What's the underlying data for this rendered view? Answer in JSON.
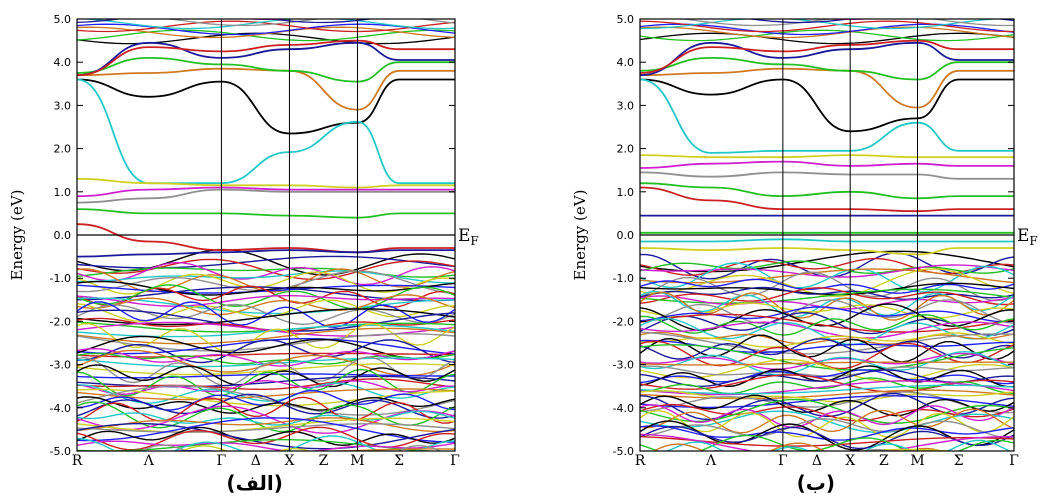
{
  "chart_data": [
    {
      "type": "line",
      "caption": "(الف)",
      "ylabel": "Energy (eV)",
      "ylim": [
        -5.0,
        5.0
      ],
      "yticks": [
        "5.0",
        "4.0",
        "3.0",
        "2.0",
        "1.0",
        "0.0",
        "-1.0",
        "-2.0",
        "-3.0",
        "-4.0",
        "-5.0"
      ],
      "k_points": [
        "R",
        "Λ",
        "Γ",
        "Δ",
        "X",
        "Z",
        "M",
        "Σ",
        "Γ"
      ],
      "fermi_label": "E",
      "fermi_sub": "F",
      "x": [
        0,
        1,
        2,
        3,
        4,
        5,
        6
      ],
      "series": [
        {
          "color": "#000000",
          "values": [
            3.6,
            3.2,
            3.55,
            2.35,
            2.6,
            3.6,
            3.6
          ]
        },
        {
          "color": "#22c8c8",
          "values": [
            3.6,
            1.2,
            1.2,
            1.92,
            2.62,
            1.2,
            1.2
          ]
        },
        {
          "color": "#d07a20",
          "values": [
            3.7,
            3.75,
            3.85,
            3.8,
            2.9,
            3.8,
            3.8
          ]
        },
        {
          "color": "#22c022",
          "values": [
            3.75,
            4.1,
            3.95,
            3.8,
            3.55,
            4.0,
            4.0
          ]
        },
        {
          "color": "#1a1a9a",
          "values": [
            3.7,
            4.45,
            4.1,
            4.3,
            4.45,
            4.05,
            4.05
          ]
        },
        {
          "color": "#cc2020",
          "values": [
            3.7,
            4.35,
            4.25,
            4.4,
            4.5,
            4.3,
            4.3
          ]
        },
        {
          "color": "#d0d020",
          "values": [
            1.3,
            1.2,
            1.15,
            1.15,
            1.1,
            1.15,
            1.15
          ]
        },
        {
          "color": "#d020d0",
          "values": [
            0.9,
            1.05,
            1.1,
            1.05,
            1.05,
            1.05,
            1.05
          ]
        },
        {
          "color": "#909090",
          "values": [
            0.75,
            0.85,
            1.05,
            1.0,
            1.0,
            1.0,
            1.0
          ]
        },
        {
          "color": "#22c022",
          "values": [
            0.6,
            0.5,
            0.5,
            0.45,
            0.4,
            0.5,
            0.5
          ]
        },
        {
          "color": "#cc2020",
          "values": [
            0.25,
            -0.15,
            -0.35,
            -0.3,
            -0.4,
            -0.3,
            -0.3
          ]
        },
        {
          "color": "#1a1a9a",
          "values": [
            -0.5,
            -0.45,
            -0.4,
            -0.35,
            -0.4,
            -0.35,
            -0.35
          ]
        }
      ]
    },
    {
      "type": "line",
      "caption": "(ب)",
      "ylabel": "Energy (eV)",
      "ylim": [
        -5.0,
        5.0
      ],
      "yticks": [
        "5.0",
        "4.0",
        "3.0",
        "2.0",
        "1.0",
        "0.0",
        "-1.0",
        "-2.0",
        "-3.0",
        "-4.0",
        "-5.0"
      ],
      "k_points": [
        "R",
        "Λ",
        "Γ",
        "Δ",
        "X",
        "Z",
        "M",
        "Σ",
        "Γ"
      ],
      "fermi_label": "E",
      "fermi_sub": "F",
      "x": [
        0,
        1,
        2,
        3,
        4,
        5,
        6
      ],
      "series": [
        {
          "color": "#000000",
          "values": [
            3.6,
            3.25,
            3.6,
            2.4,
            2.7,
            3.6,
            3.6
          ]
        },
        {
          "color": "#22c8c8",
          "values": [
            3.6,
            1.9,
            1.95,
            1.95,
            2.6,
            1.95,
            1.95
          ]
        },
        {
          "color": "#d07a20",
          "values": [
            3.7,
            3.75,
            3.85,
            3.8,
            2.95,
            3.8,
            3.8
          ]
        },
        {
          "color": "#22c022",
          "values": [
            3.8,
            4.1,
            3.95,
            3.8,
            3.6,
            4.0,
            4.0
          ]
        },
        {
          "color": "#1a1a9a",
          "values": [
            3.7,
            4.45,
            4.1,
            4.3,
            4.45,
            4.05,
            4.05
          ]
        },
        {
          "color": "#cc2020",
          "values": [
            3.75,
            4.35,
            4.25,
            4.4,
            4.5,
            4.3,
            4.3
          ]
        },
        {
          "color": "#d0d020",
          "values": [
            1.85,
            1.8,
            1.8,
            1.85,
            1.8,
            1.8,
            1.8
          ]
        },
        {
          "color": "#d020d0",
          "values": [
            1.55,
            1.65,
            1.7,
            1.6,
            1.65,
            1.6,
            1.6
          ]
        },
        {
          "color": "#909090",
          "values": [
            1.45,
            1.35,
            1.45,
            1.4,
            1.4,
            1.3,
            1.3
          ]
        },
        {
          "color": "#22c022",
          "values": [
            1.2,
            1.1,
            0.9,
            1.0,
            0.85,
            0.9,
            0.9
          ]
        },
        {
          "color": "#cc2020",
          "values": [
            1.1,
            0.8,
            0.6,
            0.6,
            0.55,
            0.6,
            0.6
          ]
        },
        {
          "color": "#1a1a9a",
          "values": [
            0.45,
            0.45,
            0.45,
            0.45,
            0.45,
            0.45,
            0.45
          ]
        },
        {
          "color": "#22c022",
          "values": [
            0.05,
            0.05,
            0.05,
            0.05,
            0.05,
            0.05,
            0.05
          ]
        },
        {
          "color": "#22c8c8",
          "values": [
            -0.15,
            -0.15,
            -0.1,
            -0.15,
            -0.15,
            -0.15,
            -0.15
          ]
        },
        {
          "color": "#d0d020",
          "values": [
            -0.3,
            -0.35,
            -0.3,
            -0.35,
            -0.45,
            -0.3,
            -0.3
          ]
        }
      ]
    }
  ]
}
